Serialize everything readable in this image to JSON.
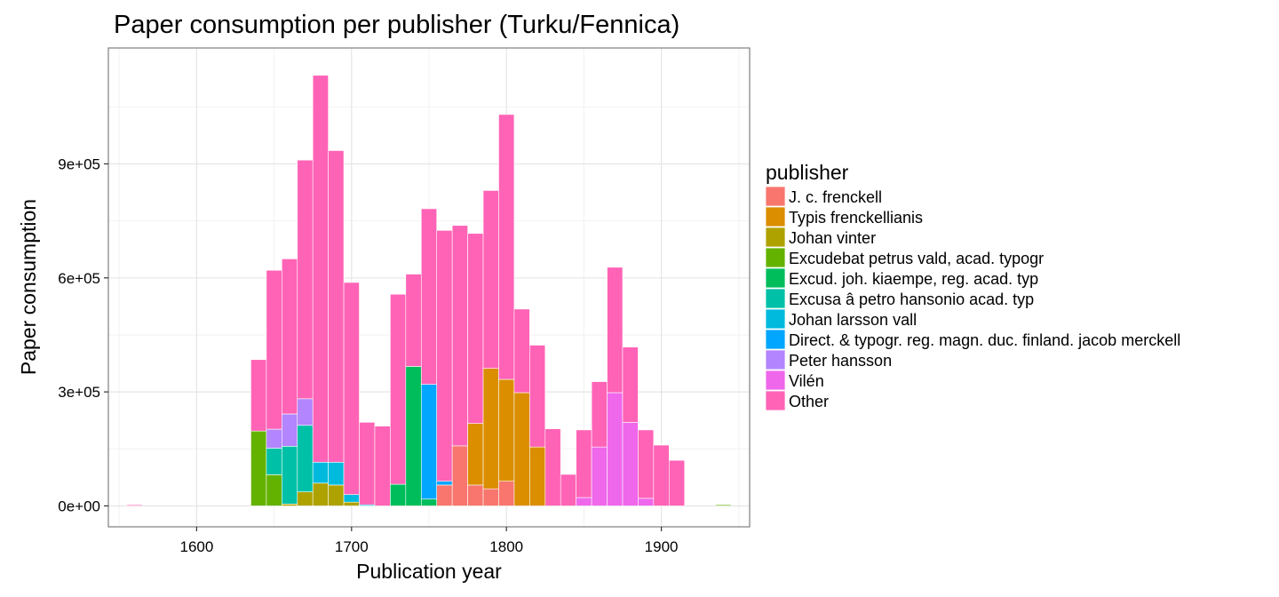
{
  "chart_data": {
    "type": "bar",
    "stacked": true,
    "title": "Paper consumption per publisher (Turku/Fennica)",
    "xlabel": "Publication year",
    "ylabel": "Paper consumption",
    "xlim": [
      1543,
      1957
    ],
    "ylim": [
      -55000,
      1205000
    ],
    "x_ticks": [
      1600,
      1700,
      1800,
      1900
    ],
    "y_ticks": [
      0,
      300000,
      600000,
      900000
    ],
    "y_tick_labels": [
      "0e+00",
      "3e+05",
      "6e+05",
      "9e+05"
    ],
    "grid": true,
    "bin_width": 10,
    "legend": {
      "title": "publisher",
      "placement": "right",
      "entries": [
        {
          "name": "J. c. frenckell",
          "color": "#F8766D"
        },
        {
          "name": "Typis frenckellianis",
          "color": "#DB8E00"
        },
        {
          "name": "Johan vinter",
          "color": "#AEA200"
        },
        {
          "name": "Excudebat petrus vald, acad. typogr",
          "color": "#64B200"
        },
        {
          "name": "Excud. joh. kiaempe, reg. acad. typ",
          "color": "#00BD5C"
        },
        {
          "name": "Excusa â petro hansonio acad. typ",
          "color": "#00C1A7"
        },
        {
          "name": "Johan larsson vall",
          "color": "#00BADE"
        },
        {
          "name": "Direct. & typogr. reg. magn. duc. finland. jacob merckell",
          "color": "#00A6FF"
        },
        {
          "name": "Peter hansson",
          "color": "#B385FF"
        },
        {
          "name": "Vilén",
          "color": "#EF67EB"
        },
        {
          "name": "Other",
          "color": "#FF63B6"
        }
      ]
    },
    "bars": [
      {
        "x": 1560,
        "segments": [
          {
            "s": "Other",
            "v": 3000
          }
        ]
      },
      {
        "x": 1640,
        "segments": [
          {
            "s": "Excudebat petrus vald, acad. typogr",
            "v": 197000
          },
          {
            "s": "Other",
            "v": 188000
          }
        ]
      },
      {
        "x": 1650,
        "segments": [
          {
            "s": "Excudebat petrus vald, acad. typogr",
            "v": 82000
          },
          {
            "s": "Excusa â petro hansonio acad. typ",
            "v": 70000
          },
          {
            "s": "Peter hansson",
            "v": 50000
          },
          {
            "s": "Other",
            "v": 418000
          }
        ]
      },
      {
        "x": 1660,
        "segments": [
          {
            "s": "Johan vinter",
            "v": 5000
          },
          {
            "s": "Excusa â petro hansonio acad. typ",
            "v": 152000
          },
          {
            "s": "Peter hansson",
            "v": 85000
          },
          {
            "s": "Other",
            "v": 408000
          }
        ]
      },
      {
        "x": 1670,
        "segments": [
          {
            "s": "Johan vinter",
            "v": 37000
          },
          {
            "s": "Excusa â petro hansonio acad. typ",
            "v": 175000
          },
          {
            "s": "Peter hansson",
            "v": 70000
          },
          {
            "s": "Other",
            "v": 628000
          }
        ]
      },
      {
        "x": 1680,
        "segments": [
          {
            "s": "Johan vinter",
            "v": 60000
          },
          {
            "s": "Johan larsson vall",
            "v": 55000
          },
          {
            "s": "Other",
            "v": 1018000
          }
        ]
      },
      {
        "x": 1690,
        "segments": [
          {
            "s": "Johan vinter",
            "v": 55000
          },
          {
            "s": "Johan larsson vall",
            "v": 60000
          },
          {
            "s": "Other",
            "v": 820000
          }
        ]
      },
      {
        "x": 1700,
        "segments": [
          {
            "s": "Johan vinter",
            "v": 10000
          },
          {
            "s": "Johan larsson vall",
            "v": 20000
          },
          {
            "s": "Other",
            "v": 558000
          }
        ]
      },
      {
        "x": 1710,
        "segments": [
          {
            "s": "Johan larsson vall",
            "v": 3000
          },
          {
            "s": "Other",
            "v": 217000
          }
        ]
      },
      {
        "x": 1720,
        "segments": [
          {
            "s": "Other",
            "v": 210000
          }
        ]
      },
      {
        "x": 1730,
        "segments": [
          {
            "s": "Excud. joh. kiaempe, reg. acad. typ",
            "v": 57000
          },
          {
            "s": "Other",
            "v": 500000
          }
        ]
      },
      {
        "x": 1740,
        "segments": [
          {
            "s": "Excud. joh. kiaempe, reg. acad. typ",
            "v": 367000
          },
          {
            "s": "Other",
            "v": 243000
          }
        ]
      },
      {
        "x": 1750,
        "segments": [
          {
            "s": "Excud. joh. kiaempe, reg. acad. typ",
            "v": 18000
          },
          {
            "s": "Direct. & typogr. reg. magn. duc. finland. jacob merckell",
            "v": 302000
          },
          {
            "s": "Other",
            "v": 462000
          }
        ]
      },
      {
        "x": 1760,
        "segments": [
          {
            "s": "J. c. frenckell",
            "v": 55000
          },
          {
            "s": "Direct. & typogr. reg. magn. duc. finland. jacob merckell",
            "v": 10000
          },
          {
            "s": "Other",
            "v": 660000
          }
        ]
      },
      {
        "x": 1770,
        "segments": [
          {
            "s": "J. c. frenckell",
            "v": 158000
          },
          {
            "s": "Other",
            "v": 580000
          }
        ]
      },
      {
        "x": 1780,
        "segments": [
          {
            "s": "J. c. frenckell",
            "v": 55000
          },
          {
            "s": "Typis frenckellianis",
            "v": 162000
          },
          {
            "s": "Other",
            "v": 500000
          }
        ]
      },
      {
        "x": 1790,
        "segments": [
          {
            "s": "J. c. frenckell",
            "v": 45000
          },
          {
            "s": "Typis frenckellianis",
            "v": 317000
          },
          {
            "s": "Other",
            "v": 468000
          }
        ]
      },
      {
        "x": 1800,
        "segments": [
          {
            "s": "J. c. frenckell",
            "v": 65000
          },
          {
            "s": "Typis frenckellianis",
            "v": 268000
          },
          {
            "s": "Other",
            "v": 697000
          }
        ]
      },
      {
        "x": 1810,
        "segments": [
          {
            "s": "Typis frenckellianis",
            "v": 298000
          },
          {
            "s": "Other",
            "v": 220000
          }
        ]
      },
      {
        "x": 1820,
        "segments": [
          {
            "s": "Typis frenckellianis",
            "v": 155000
          },
          {
            "s": "Other",
            "v": 268000
          }
        ]
      },
      {
        "x": 1830,
        "segments": [
          {
            "s": "Other",
            "v": 203000
          }
        ]
      },
      {
        "x": 1840,
        "segments": [
          {
            "s": "Other",
            "v": 83000
          }
        ]
      },
      {
        "x": 1850,
        "segments": [
          {
            "s": "Vilén",
            "v": 22000
          },
          {
            "s": "Other",
            "v": 178000
          }
        ]
      },
      {
        "x": 1860,
        "segments": [
          {
            "s": "Vilén",
            "v": 155000
          },
          {
            "s": "Other",
            "v": 172000
          }
        ]
      },
      {
        "x": 1870,
        "segments": [
          {
            "s": "Vilén",
            "v": 298000
          },
          {
            "s": "Other",
            "v": 330000
          }
        ]
      },
      {
        "x": 1880,
        "segments": [
          {
            "s": "Vilén",
            "v": 220000
          },
          {
            "s": "Other",
            "v": 198000
          }
        ]
      },
      {
        "x": 1890,
        "segments": [
          {
            "s": "Vilén",
            "v": 20000
          },
          {
            "s": "Other",
            "v": 180000
          }
        ]
      },
      {
        "x": 1900,
        "segments": [
          {
            "s": "Other",
            "v": 160000
          }
        ]
      },
      {
        "x": 1910,
        "segments": [
          {
            "s": "Other",
            "v": 120000
          }
        ]
      },
      {
        "x": 1940,
        "segments": [
          {
            "s": "Excudebat petrus vald, acad. typogr",
            "v": 3000
          }
        ]
      }
    ]
  }
}
